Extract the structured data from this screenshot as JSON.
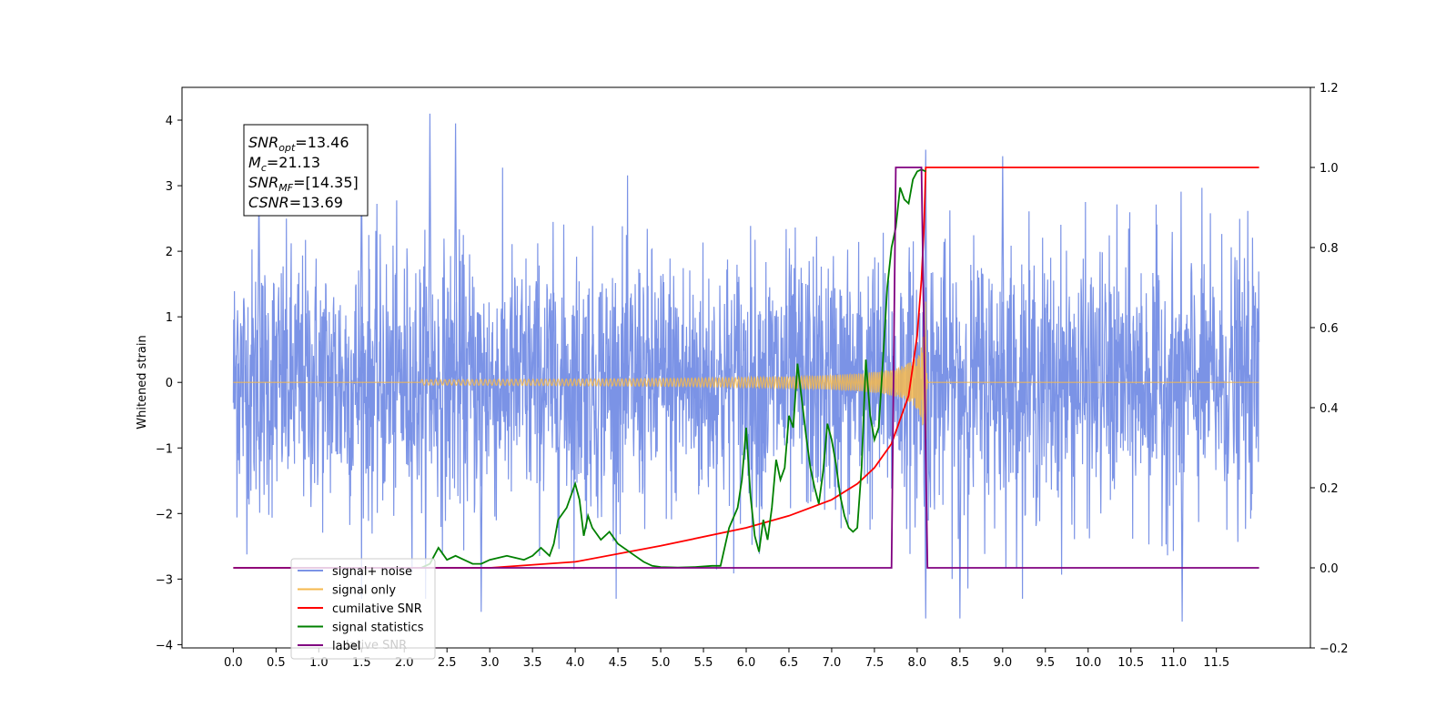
{
  "chart_data": {
    "type": "line",
    "title": "",
    "xlabel": "",
    "ylabel": "Whitened strain",
    "y2label": "",
    "xlim": [
      -0.6,
      12.6
    ],
    "ylim": [
      -4.05,
      4.5
    ],
    "y2lim": [
      -0.2,
      1.2
    ],
    "x_ticks": [
      "0.0",
      "0.5",
      "1.0",
      "1.5",
      "2.0",
      "2.5",
      "3.0",
      "3.5",
      "4.0",
      "4.5",
      "5.0",
      "5.5",
      "6.0",
      "6.5",
      "7.0",
      "7.5",
      "8.0",
      "8.5",
      "9.0",
      "9.5",
      "10.0",
      "10.5",
      "11.0",
      "11.5"
    ],
    "y_ticks": [
      "−4",
      "−3",
      "−2",
      "−1",
      "0",
      "1",
      "2",
      "3",
      "4"
    ],
    "y2_ticks": [
      "−0.2",
      "0.0",
      "0.2",
      "0.4",
      "0.6",
      "0.8",
      "1.0",
      "1.2"
    ],
    "grid": false,
    "legend_position": "lower-left",
    "annotation": {
      "lines": [
        {
          "base": "SNR",
          "sub": "opt",
          "value": "=13.46"
        },
        {
          "base": "M",
          "sub": "c",
          "value": "=21.13"
        },
        {
          "base": "SNR",
          "sub": "MF",
          "value": "=[14.35]"
        },
        {
          "base": "CSNR",
          "sub": "",
          "value": "=13.69"
        }
      ]
    },
    "series": [
      {
        "name": "signal+ noise",
        "axis": "left",
        "color": "#7b93e6",
        "description": "whitened strain noise, roughly N(0,1) over x 0–12, peaks near ±4",
        "x_range": [
          0.0,
          12.0
        ],
        "peaks": [
          [
            0.05,
            1.1
          ],
          [
            0.3,
            3.0
          ],
          [
            2.3,
            4.1
          ],
          [
            2.6,
            3.95
          ],
          [
            1.5,
            3.3
          ],
          [
            8.1,
            3.55
          ],
          [
            9.0,
            3.45
          ],
          [
            2.9,
            -3.5
          ],
          [
            8.5,
            -3.6
          ],
          [
            11.1,
            -3.65
          ],
          [
            8.1,
            -3.6
          ]
        ]
      },
      {
        "name": "signal only",
        "axis": "left",
        "color": "#f5b84e",
        "description": "chirp from x≈2.2 rising to amplitude ≈2.5 at merger x≈8.1, zero elsewhere",
        "chirp_start": 2.2,
        "merger": 8.1,
        "peak_amplitude": 2.6
      },
      {
        "name": "cumilative SNR",
        "axis": "right",
        "color": "#ff0000",
        "x": [
          0.0,
          3.0,
          4.0,
          5.0,
          6.0,
          6.5,
          7.0,
          7.3,
          7.5,
          7.7,
          7.9,
          8.0,
          8.05,
          8.08,
          8.1,
          12.0
        ],
        "values": [
          0.0,
          0.0,
          0.015,
          0.055,
          0.1,
          0.13,
          0.17,
          0.21,
          0.25,
          0.31,
          0.43,
          0.58,
          0.72,
          0.85,
          1.0,
          1.0
        ]
      },
      {
        "name": "signal statistics",
        "axis": "right",
        "color": "#008000",
        "x": [
          2.2,
          2.3,
          2.4,
          2.5,
          2.6,
          2.7,
          2.8,
          2.9,
          3.0,
          3.1,
          3.2,
          3.3,
          3.4,
          3.5,
          3.6,
          3.7,
          3.75,
          3.8,
          3.9,
          4.0,
          4.05,
          4.1,
          4.15,
          4.2,
          4.3,
          4.4,
          4.5,
          4.7,
          4.8,
          4.9,
          5.0,
          5.2,
          5.4,
          5.6,
          5.7,
          5.8,
          5.9,
          5.95,
          6.0,
          6.05,
          6.1,
          6.15,
          6.2,
          6.25,
          6.3,
          6.35,
          6.4,
          6.45,
          6.5,
          6.55,
          6.6,
          6.65,
          6.7,
          6.75,
          6.8,
          6.85,
          6.9,
          6.95,
          7.0,
          7.05,
          7.1,
          7.15,
          7.2,
          7.25,
          7.3,
          7.35,
          7.4,
          7.45,
          7.5,
          7.55,
          7.6,
          7.65,
          7.7,
          7.75,
          7.8,
          7.85,
          7.9,
          7.95,
          8.0,
          8.05,
          8.1
        ],
        "values": [
          0.0,
          0.01,
          0.05,
          0.02,
          0.03,
          0.02,
          0.01,
          0.01,
          0.02,
          0.025,
          0.03,
          0.025,
          0.02,
          0.03,
          0.05,
          0.03,
          0.06,
          0.12,
          0.15,
          0.21,
          0.17,
          0.08,
          0.13,
          0.1,
          0.07,
          0.09,
          0.06,
          0.03,
          0.015,
          0.005,
          0.002,
          0.001,
          0.002,
          0.005,
          0.005,
          0.1,
          0.15,
          0.22,
          0.35,
          0.18,
          0.08,
          0.04,
          0.12,
          0.07,
          0.15,
          0.27,
          0.22,
          0.25,
          0.38,
          0.35,
          0.51,
          0.42,
          0.33,
          0.25,
          0.2,
          0.16,
          0.24,
          0.36,
          0.32,
          0.26,
          0.18,
          0.13,
          0.1,
          0.09,
          0.1,
          0.25,
          0.52,
          0.38,
          0.32,
          0.35,
          0.52,
          0.7,
          0.8,
          0.85,
          0.95,
          0.92,
          0.91,
          0.97,
          0.99,
          0.995,
          0.99
        ]
      },
      {
        "name": "label",
        "axis": "right",
        "color": "#800080",
        "x": [
          0.0,
          7.7,
          7.75,
          8.05,
          8.12,
          12.0
        ],
        "values": [
          0.0,
          0.0,
          1.0,
          1.0,
          0.0,
          0.0
        ]
      }
    ],
    "legend_entries": [
      {
        "label": "signal+ noise",
        "color": "#7b93e6"
      },
      {
        "label": "signal only",
        "color": "#f5b84e"
      },
      {
        "label": "cumilative SNR",
        "color": "#ff0000"
      },
      {
        "label": "signal statistics",
        "color": "#008000"
      },
      {
        "label": "label",
        "color": "#800080"
      }
    ],
    "legend_overlap_text": "lative SNR"
  }
}
